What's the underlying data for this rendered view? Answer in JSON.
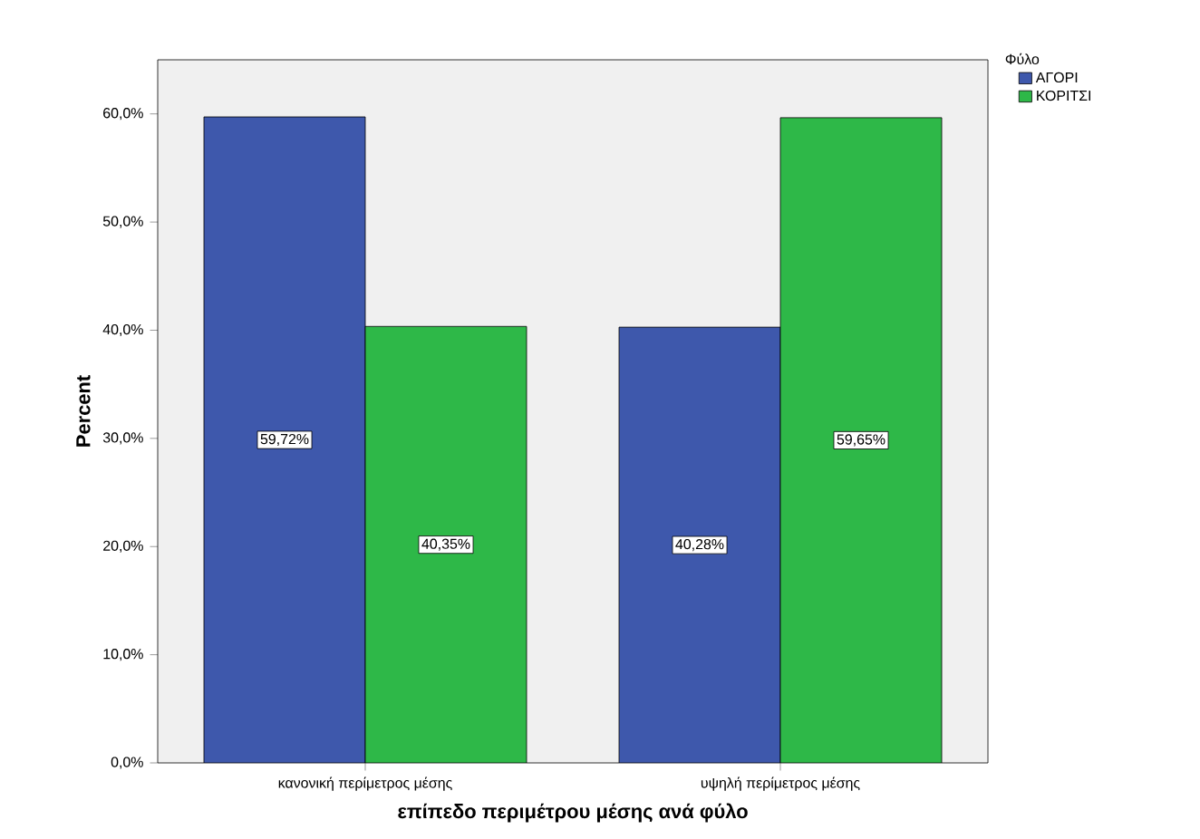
{
  "chart_data": {
    "type": "bar",
    "xlabel": "επίπεδο περιμέτρου μέσης ανά φύλο",
    "ylabel": "Percent",
    "legend_title": "Φύλο",
    "legend": "top right",
    "categories": [
      "κανονική περίμετρος μέσης",
      "υψηλή περίμετρος μέσης"
    ],
    "series": [
      {
        "name": "ΑΓΟΡΙ",
        "color": "#3e58ac",
        "values": [
          59.72,
          40.28
        ],
        "value_labels": [
          "59,72%",
          "40,28%"
        ]
      },
      {
        "name": "ΚΟΡΙΤΣΙ",
        "color": "#2eb848",
        "values": [
          40.35,
          59.65
        ],
        "value_labels": [
          "40,35%",
          "59,65%"
        ]
      }
    ],
    "ylim": [
      0,
      65
    ],
    "yticks": [
      {
        "value": 0,
        "label": "0,0%"
      },
      {
        "value": 10,
        "label": "10,0%"
      },
      {
        "value": 20,
        "label": "20,0%"
      },
      {
        "value": 30,
        "label": "30,0%"
      },
      {
        "value": 40,
        "label": "40,0%"
      },
      {
        "value": 50,
        "label": "50,0%"
      },
      {
        "value": 60,
        "label": "60,0%"
      }
    ],
    "grid": false
  }
}
